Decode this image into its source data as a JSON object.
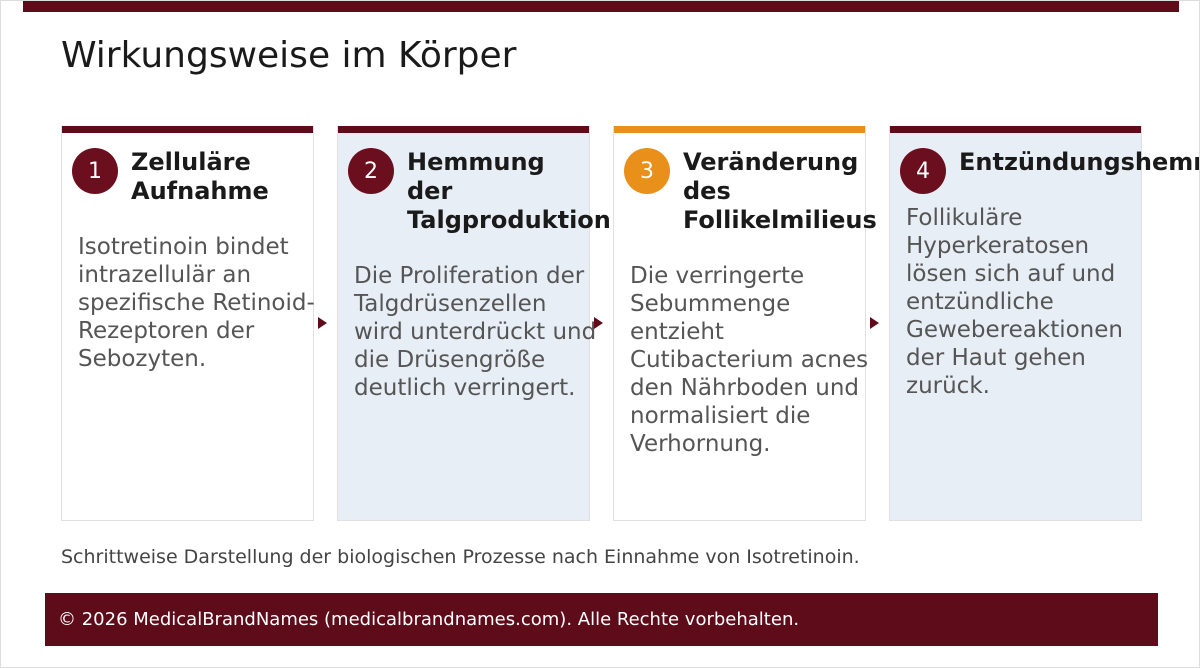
{
  "header": {
    "title": "Wirkungsweise im Körper"
  },
  "steps": [
    {
      "number": "1",
      "title": "Zelluläre Aufnahme",
      "text": "Isotretinoin bindet intrazellulär an spezifische Retinoid-Rezeptoren der Sebozyten."
    },
    {
      "number": "2",
      "title": "Hemmung der Talgproduktion",
      "text": "Die Proliferation der Talgdrüsenzellen wird unterdrückt und die Drüsengröße deutlich verringert."
    },
    {
      "number": "3",
      "title": "Veränderung des Follikelmilieus",
      "text": "Die verringerte Sebummenge entzieht Cutibacterium acnes den Nährboden und normalisiert die Verhornung."
    },
    {
      "number": "4",
      "title": "Entzündungshemmung",
      "text": "Follikuläre Hyperkeratosen lösen sich auf und entzündliche Gewebereaktionen der Haut gehen zurück."
    }
  ],
  "caption": "Schrittweise Darstellung der biologischen Prozesse nach Einnahme von Isotretinoin.",
  "footer": "© 2026 MedicalBrandNames (medicalbrandnames.com). Alle Rechte vorbehalten."
}
